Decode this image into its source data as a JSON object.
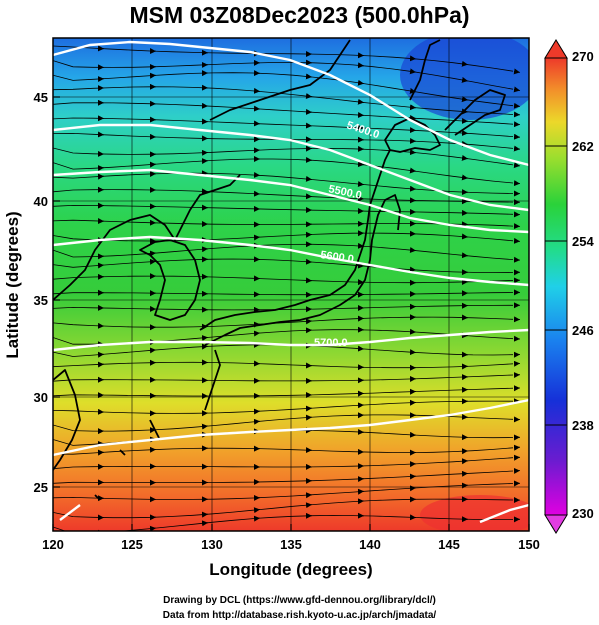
{
  "title": "MSM 03Z08Dec2023 (500.0hPa)",
  "axes": {
    "xlabel": "Longitude (degrees)",
    "ylabel": "Latitude  (degrees)",
    "xticks": [
      "120",
      "125",
      "130",
      "135",
      "140",
      "145",
      "150"
    ],
    "yticks": [
      "25",
      "30",
      "35",
      "40",
      "45"
    ]
  },
  "colorbar": {
    "ticks": [
      "270",
      "262",
      "254",
      "246",
      "238",
      "230"
    ],
    "min": 230,
    "max": 270
  },
  "contours": [
    {
      "label": "5400.0"
    },
    {
      "label": "5500.0"
    },
    {
      "label": "5600.0"
    },
    {
      "label": "5700.0"
    }
  ],
  "credits": {
    "line1": "Drawing by DCL (https://www.gfd-dennou.org/library/dcl/)",
    "line2": "Data from http://database.rish.kyoto-u.ac.jp/arch/jmadata/"
  }
}
